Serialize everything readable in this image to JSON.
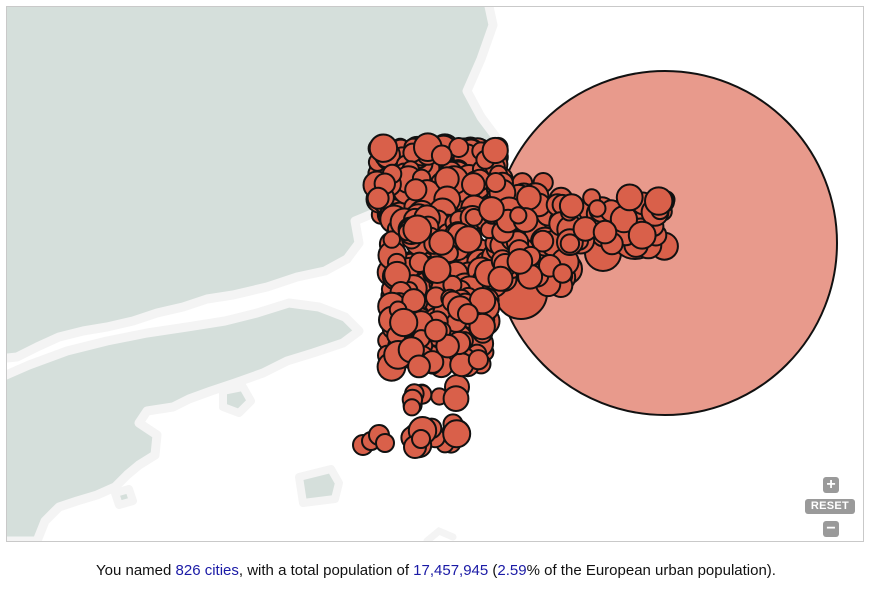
{
  "map": {
    "colors": {
      "land": "#d5dfdb",
      "sea": "#ffffff",
      "border": "#f4f4f4",
      "city_fill": "#d9604a",
      "city_stroke": "#111111",
      "highlight_fill": "#e89a8c"
    },
    "controls": {
      "zoom_in_label": "+",
      "reset_label": "RESET",
      "zoom_out_label": "−"
    }
  },
  "summary": {
    "prefix": "You named ",
    "cities_count": "826 cities",
    "middle": ", with a total population of ",
    "total_population": "17,457,945",
    "paren_open": " (",
    "percent": "2.59",
    "suffix": "% of the European urban population)."
  }
}
